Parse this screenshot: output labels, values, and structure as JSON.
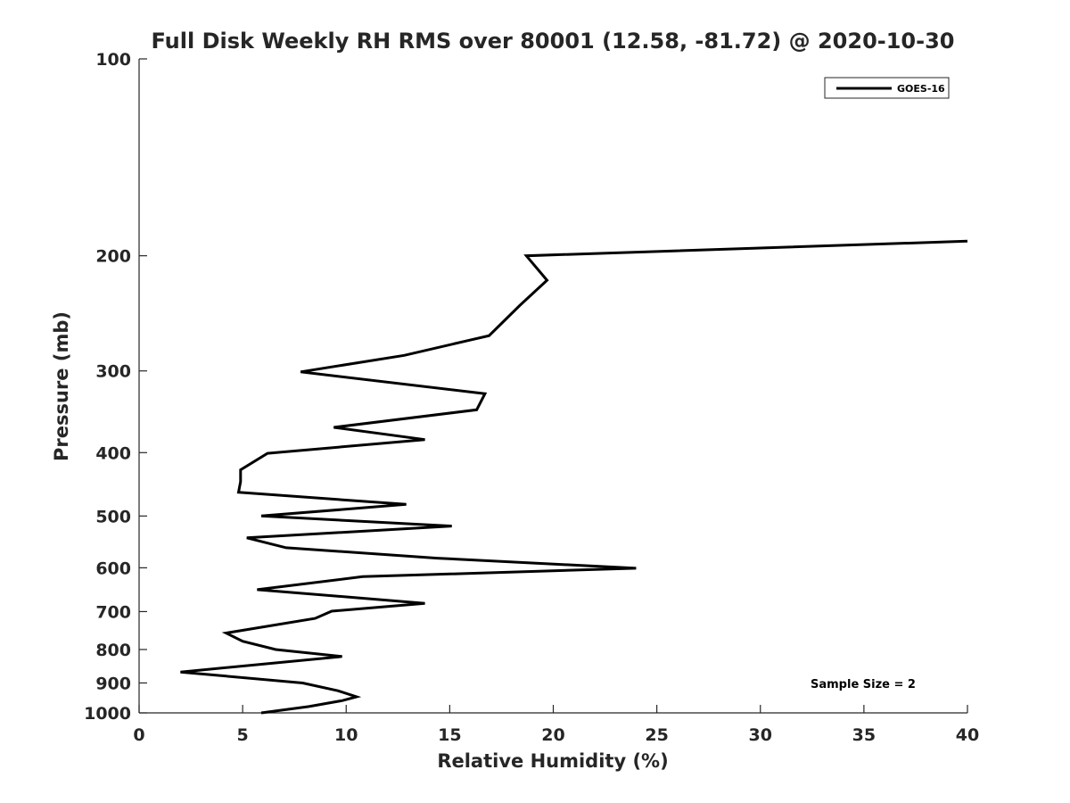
{
  "chart_data": {
    "type": "line",
    "title": "Full Disk Weekly RH RMS over 80001 (12.58, -81.72) @ 2020-10-30",
    "xlabel": "Relative Humidity (%)",
    "ylabel": "Pressure (mb)",
    "xlim": [
      0,
      40
    ],
    "ylim": [
      100,
      1000
    ],
    "yscale": "log-reversed",
    "xticks": [
      0,
      5,
      10,
      15,
      20,
      25,
      30,
      35,
      40
    ],
    "yticks": [
      100,
      200,
      300,
      400,
      500,
      600,
      700,
      800,
      900,
      1000
    ],
    "grid": false,
    "legend_position": "top-right",
    "series": [
      {
        "name": "GOES-16",
        "color": "#000000",
        "points": [
          {
            "x": 40.0,
            "p": 190
          },
          {
            "x": 18.7,
            "p": 200
          },
          {
            "x": 19.7,
            "p": 218
          },
          {
            "x": 18.4,
            "p": 238
          },
          {
            "x": 16.9,
            "p": 265
          },
          {
            "x": 12.8,
            "p": 284
          },
          {
            "x": 7.8,
            "p": 301
          },
          {
            "x": 16.7,
            "p": 325
          },
          {
            "x": 16.3,
            "p": 344
          },
          {
            "x": 9.4,
            "p": 366
          },
          {
            "x": 13.8,
            "p": 382
          },
          {
            "x": 6.2,
            "p": 401
          },
          {
            "x": 4.9,
            "p": 425
          },
          {
            "x": 4.9,
            "p": 443
          },
          {
            "x": 4.8,
            "p": 460
          },
          {
            "x": 12.9,
            "p": 480
          },
          {
            "x": 5.9,
            "p": 500
          },
          {
            "x": 15.1,
            "p": 518
          },
          {
            "x": 5.2,
            "p": 540
          },
          {
            "x": 7.1,
            "p": 559
          },
          {
            "x": 14.4,
            "p": 580
          },
          {
            "x": 24.0,
            "p": 601
          },
          {
            "x": 10.8,
            "p": 619
          },
          {
            "x": 5.7,
            "p": 648
          },
          {
            "x": 13.8,
            "p": 680
          },
          {
            "x": 9.3,
            "p": 699
          },
          {
            "x": 8.5,
            "p": 717
          },
          {
            "x": 4.2,
            "p": 755
          },
          {
            "x": 5.0,
            "p": 777
          },
          {
            "x": 6.6,
            "p": 800
          },
          {
            "x": 9.8,
            "p": 820
          },
          {
            "x": 2.0,
            "p": 866
          },
          {
            "x": 7.9,
            "p": 900
          },
          {
            "x": 9.6,
            "p": 925
          },
          {
            "x": 10.5,
            "p": 945
          },
          {
            "x": 9.8,
            "p": 958
          },
          {
            "x": 8.2,
            "p": 978
          },
          {
            "x": 5.9,
            "p": 1000
          }
        ]
      }
    ],
    "annotation": "Sample Size = 2"
  }
}
